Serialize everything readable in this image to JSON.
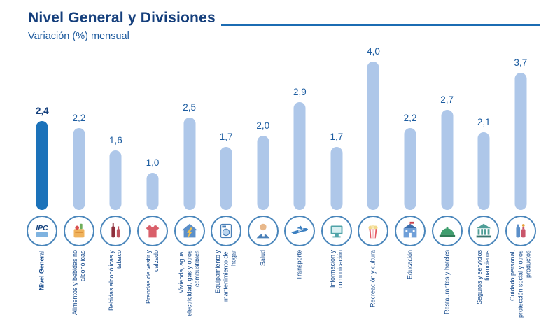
{
  "header": {
    "title": "Nivel General y Divisiones",
    "subtitle": "Variación (%) mensual"
  },
  "chart_data": {
    "type": "bar",
    "title": "Nivel General y Divisiones",
    "subtitle": "Variación (%) mensual",
    "xlabel": "",
    "ylabel": "Variación (%) mensual",
    "ylim": [
      0,
      4.2
    ],
    "grid": false,
    "legend": false,
    "bar_style": "rounded-lollipop",
    "highlight_index": 0,
    "value_decimal_separator": ",",
    "categories": [
      "Nivel General",
      "Alimentos y bebidas no alcohólicas",
      "Bebidas alcohólicas y tabaco",
      "Prendas de vestir y calzado",
      "Vivienda, agua, electricidad, gas y otros combustibles",
      "Equipamiento y mantenimiento del hogar",
      "Salud",
      "Transporte",
      "Información y comunicación",
      "Recreación y cultura",
      "Educación",
      "Restaurantes y hoteles",
      "Seguros y servicios financieros",
      "Cuidado personal, protección social y otros productos"
    ],
    "values": [
      2.4,
      2.2,
      1.6,
      1.0,
      2.5,
      1.7,
      2.0,
      2.9,
      1.7,
      4.0,
      2.2,
      2.7,
      2.1,
      3.7
    ],
    "value_labels": [
      "2,4",
      "2,2",
      "1,6",
      "1,0",
      "2,5",
      "1,7",
      "2,0",
      "2,9",
      "1,7",
      "4,0",
      "2,2",
      "2,7",
      "2,1",
      "3,7"
    ],
    "icons": [
      "ipc-logo-icon",
      "groceries-icon",
      "alcohol-tobacco-icon",
      "clothing-icon",
      "housing-utilities-icon",
      "household-equipment-icon",
      "health-icon",
      "transport-icon",
      "communication-icon",
      "recreation-icon",
      "education-icon",
      "restaurants-hotels-icon",
      "insurance-financial-icon",
      "personal-care-icon"
    ],
    "colors": {
      "highlight_bar": "#1b72ba",
      "bar": "#aec7e9",
      "title_text": "#153f7c",
      "label_text": "#164a8c",
      "rule": "#1b6cb3"
    }
  }
}
